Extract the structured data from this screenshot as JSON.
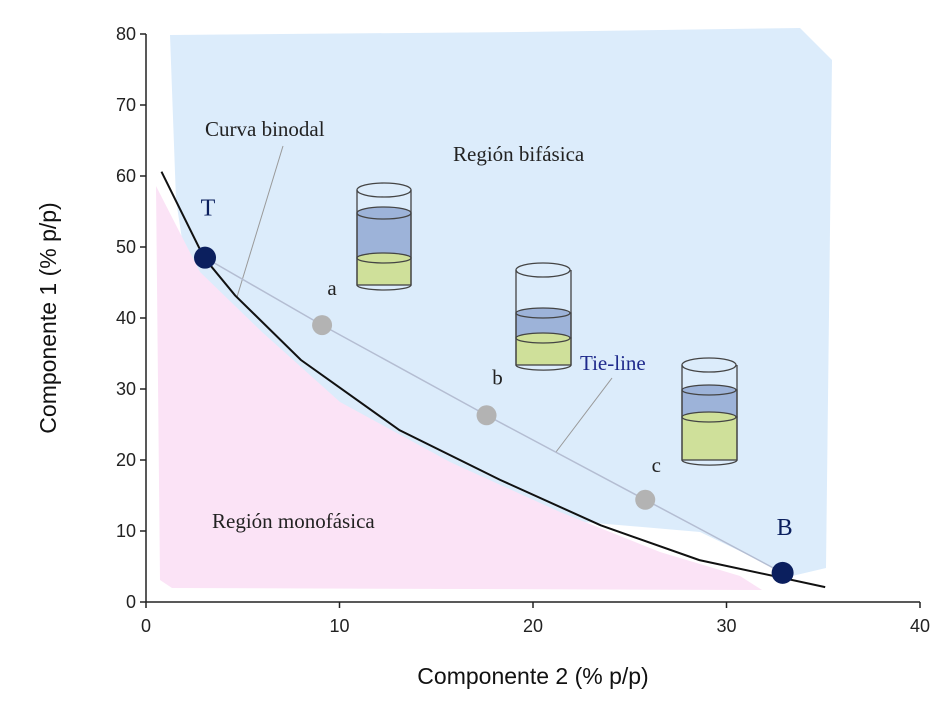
{
  "chart_data": {
    "type": "line",
    "xlabel": "Componente 2 (% p/p)",
    "ylabel": "Componente 1 (% p/p)",
    "xlim": [
      0,
      40
    ],
    "xticks": [
      0,
      10,
      20,
      30,
      40
    ],
    "ylim": [
      0,
      80
    ],
    "yticks": [
      0,
      10,
      20,
      30,
      40,
      50,
      60,
      70,
      80
    ],
    "annotations": [
      "Región bifásica",
      "Región monofásica"
    ],
    "series": [
      {
        "name": "Curva binodal",
        "color": "#111111",
        "x": [
          0.8,
          3.0,
          4.6,
          8.0,
          13.1,
          18.3,
          23.5,
          28.6,
          35.1
        ],
        "values": [
          60.6,
          48.5,
          43.2,
          34.1,
          24.2,
          17.2,
          10.8,
          5.9,
          2.1
        ]
      },
      {
        "name": "Tie-line",
        "color": "#b4bdd2",
        "x": [
          3.05,
          9.1,
          17.6,
          25.8,
          32.9
        ],
        "values": [
          48.5,
          39.0,
          26.3,
          14.4,
          4.1
        ],
        "point_labels": [
          "T",
          "a",
          "b",
          "c",
          "B"
        ],
        "point_colors": [
          "#0b1f5e",
          "#b3b3b3",
          "#b3b3b3",
          "#b3b3b3",
          "#0b1f5e"
        ]
      }
    ]
  }
}
